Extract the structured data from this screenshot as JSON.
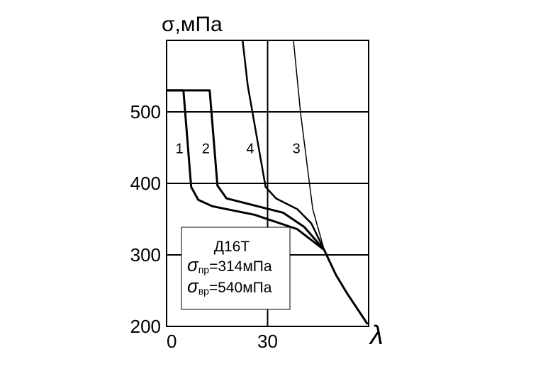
{
  "chart_data": {
    "type": "line",
    "y_label": "σ,мПа",
    "x_label": "λ",
    "xlim": [
      0,
      60
    ],
    "ylim": [
      200,
      600
    ],
    "xticks": [
      0,
      30
    ],
    "yticks": [
      200,
      300,
      400,
      500
    ],
    "grid": true,
    "series": [
      {
        "name": "1",
        "color": "#000000",
        "width": 3,
        "x": [
          0,
          5,
          7.3,
          9.4,
          13.6,
          26.2,
          38.8,
          46.8,
          50.3,
          53.5,
          59.7
        ],
        "values": [
          530,
          530,
          395,
          377,
          368,
          356,
          336,
          307,
          272,
          247,
          203
        ]
      },
      {
        "name": "2",
        "color": "#000000",
        "width": 3,
        "x": [
          0,
          12.8,
          15.1,
          17.8,
          26.2,
          34.6,
          40.9,
          46.8
        ],
        "values": [
          530,
          530,
          397,
          379,
          369,
          359,
          339,
          307
        ]
      },
      {
        "name": "4",
        "color": "#000000",
        "width": 2.5,
        "x": [
          22.6,
          24.1,
          29.4,
          32.5,
          38.8,
          43,
          46.8
        ],
        "values": [
          599,
          537,
          395,
          379,
          364,
          344,
          307
        ]
      },
      {
        "name": "3",
        "color": "#000000",
        "width": 1.5,
        "x": [
          37.7,
          39.8,
          43.4,
          46.8
        ],
        "values": [
          599,
          498,
          364,
          307
        ]
      }
    ],
    "annotation": {
      "title": "Д16Т",
      "lines": [
        {
          "symbol": "σ",
          "sub": "пр",
          "text": "=314мПа"
        },
        {
          "symbol": "σ",
          "sub": "вр",
          "text": "=540мПа"
        }
      ]
    }
  }
}
